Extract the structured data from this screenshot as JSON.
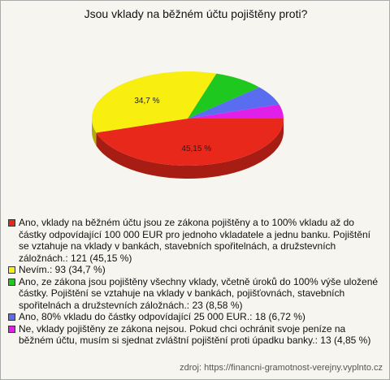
{
  "chart_data": {
    "type": "pie",
    "title": "Jsou vklady na běžném účtu pojištěny proti?",
    "categories": [
      "Ano, vklady na běžném účtu jsou ze zákona pojištěny a to 100% vkladu až do částky odpovídající 100 000 EUR pro jednoho vkladatele a jednu banku. Pojištění se vztahuje na vklady v bankách, stavebních spořitelnách, a družstevních záložnách.: 121 (45,15 %)",
      "Nevím.: 93 (34,7 %)",
      "Ano, ze zákona jsou pojištěny všechny vklady, včetně úroků do 100% výše uložené částky. Pojištění se vztahuje na vklady v bankách, pojišťovnách, stavebních spořitelnách a družstevních záložnách.: 23 (8,58 %)",
      "Ano, 80% vkladu do částky odpovídající 25 000 EUR.: 18 (6,72 %)",
      "Ne, vklady pojištěny ze zákona nejsou. Pokud chci ochránit svoje peníze na běžném účtu, musím si sjednat zvláštní pojištění proti úpadku banky.: 13 (4,85 %)"
    ],
    "values": [
      45.15,
      34.7,
      8.58,
      6.72,
      4.85
    ],
    "value_labels": [
      "45,15 %",
      "34,7 %",
      null,
      null,
      null
    ],
    "colors": [
      "#e8281a",
      "#f8ee10",
      "#1ec81e",
      "#5a6cf0",
      "#e020e8"
    ],
    "source": "zdroj: https://financni-gramotnost-verejny.vyplnto.cz"
  }
}
